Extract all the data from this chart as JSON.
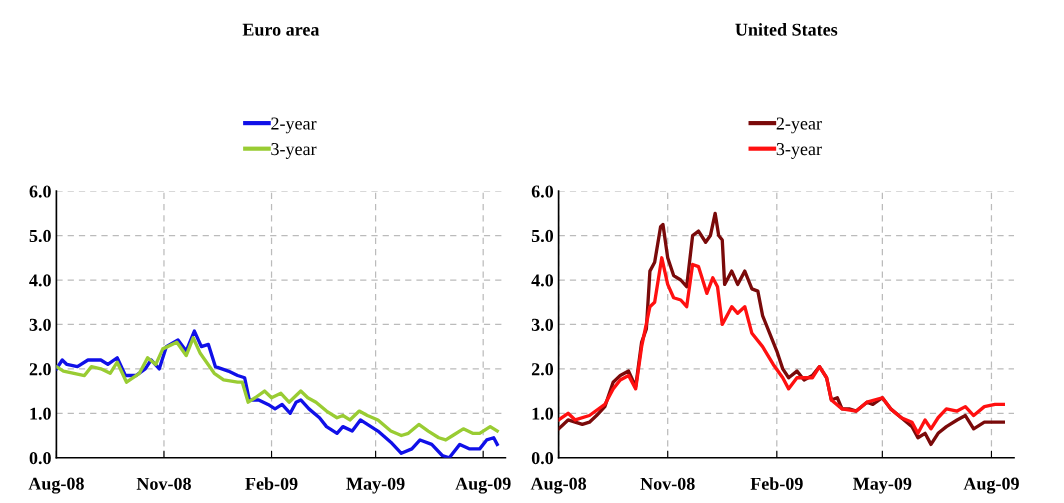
{
  "chart_data": [
    {
      "type": "line",
      "title": "Euro area",
      "xlim": [
        "2008-08-01",
        "2009-08-20"
      ],
      "ylim": [
        0,
        6
      ],
      "xticks": [
        {
          "value": "2008-08-01",
          "label": "Aug-08"
        },
        {
          "value": "2008-11-01",
          "label": "Nov-08"
        },
        {
          "value": "2009-02-01",
          "label": "Feb-09"
        },
        {
          "value": "2009-05-01",
          "label": "May-09"
        },
        {
          "value": "2009-08-01",
          "label": "Aug-09"
        }
      ],
      "yticks": [
        {
          "value": 0,
          "label": "0.0"
        },
        {
          "value": 1,
          "label": "1.0"
        },
        {
          "value": 2,
          "label": "2.0"
        },
        {
          "value": 3,
          "label": "3.0"
        },
        {
          "value": 4,
          "label": "4.0"
        },
        {
          "value": 5,
          "label": "5.0"
        },
        {
          "value": 6,
          "label": "6.0"
        }
      ],
      "grid": true,
      "legend": "top",
      "marker": "none",
      "line_style": "solid",
      "series": [
        {
          "name": "2-year",
          "color": "#1010e8",
          "x": [
            "2008-08-01",
            "2008-08-06",
            "2008-08-10",
            "2008-08-19",
            "2008-08-28",
            "2008-09-08",
            "2008-09-14",
            "2008-09-22",
            "2008-09-29",
            "2008-10-08",
            "2008-10-16",
            "2008-10-21",
            "2008-10-28",
            "2008-11-03",
            "2008-11-13",
            "2008-11-20",
            "2008-11-27",
            "2008-12-03",
            "2008-12-09",
            "2008-12-15",
            "2008-12-26",
            "2009-01-03",
            "2009-01-09",
            "2009-01-13",
            "2009-01-21",
            "2009-01-29",
            "2009-02-04",
            "2009-02-10",
            "2009-02-17",
            "2009-02-22",
            "2009-02-26",
            "2009-03-05",
            "2009-03-14",
            "2009-03-20",
            "2009-03-29",
            "2009-04-03",
            "2009-04-11",
            "2009-04-18",
            "2009-04-24",
            "2009-05-03",
            "2009-05-14",
            "2009-05-23",
            "2009-06-01",
            "2009-06-08",
            "2009-06-18",
            "2009-06-27",
            "2009-07-03",
            "2009-07-12",
            "2009-07-20",
            "2009-07-29",
            "2009-08-04",
            "2009-08-10",
            "2009-08-13"
          ],
          "values": [
            2.0,
            2.2,
            2.1,
            2.05,
            2.2,
            2.2,
            2.1,
            2.25,
            1.85,
            1.85,
            2.0,
            2.2,
            2.0,
            2.5,
            2.65,
            2.4,
            2.85,
            2.5,
            2.55,
            2.05,
            1.95,
            1.85,
            1.8,
            1.3,
            1.3,
            1.2,
            1.1,
            1.2,
            1.0,
            1.25,
            1.3,
            1.1,
            0.9,
            0.7,
            0.55,
            0.7,
            0.6,
            0.85,
            0.75,
            0.6,
            0.35,
            0.1,
            0.2,
            0.4,
            0.3,
            0.05,
            0.0,
            0.3,
            0.2,
            0.2,
            0.4,
            0.45,
            0.3
          ]
        },
        {
          "name": "3-year",
          "color": "#99cc33",
          "x": [
            "2008-08-01",
            "2008-08-07",
            "2008-08-16",
            "2008-08-25",
            "2008-08-31",
            "2008-09-08",
            "2008-09-16",
            "2008-09-22",
            "2008-09-30",
            "2008-10-11",
            "2008-10-18",
            "2008-10-25",
            "2008-10-31",
            "2008-11-12",
            "2008-11-20",
            "2008-11-26",
            "2008-12-02",
            "2008-12-14",
            "2008-12-22",
            "2009-01-03",
            "2009-01-07",
            "2009-01-12",
            "2009-01-18",
            "2009-01-26",
            "2009-02-01",
            "2009-02-09",
            "2009-02-16",
            "2009-02-26",
            "2009-03-04",
            "2009-03-11",
            "2009-03-20",
            "2009-03-29",
            "2009-04-03",
            "2009-04-09",
            "2009-04-17",
            "2009-04-24",
            "2009-05-03",
            "2009-05-14",
            "2009-05-23",
            "2009-05-29",
            "2009-06-07",
            "2009-06-15",
            "2009-06-24",
            "2009-06-30",
            "2009-07-06",
            "2009-07-15",
            "2009-07-23",
            "2009-07-29",
            "2009-08-07",
            "2009-08-13"
          ],
          "values": [
            2.05,
            1.95,
            1.9,
            1.85,
            2.05,
            2.0,
            1.9,
            2.15,
            1.7,
            1.9,
            2.25,
            2.1,
            2.45,
            2.6,
            2.3,
            2.7,
            2.35,
            1.9,
            1.75,
            1.7,
            1.7,
            1.25,
            1.35,
            1.5,
            1.35,
            1.45,
            1.25,
            1.5,
            1.35,
            1.25,
            1.05,
            0.9,
            0.95,
            0.85,
            1.05,
            0.95,
            0.85,
            0.6,
            0.5,
            0.55,
            0.75,
            0.6,
            0.45,
            0.4,
            0.5,
            0.65,
            0.55,
            0.55,
            0.7,
            0.6
          ]
        }
      ]
    },
    {
      "type": "line",
      "title": "United States",
      "xlim": [
        "2008-08-01",
        "2009-08-20"
      ],
      "ylim": [
        0,
        6
      ],
      "xticks": [
        {
          "value": "2008-08-01",
          "label": "Aug-08"
        },
        {
          "value": "2008-11-01",
          "label": "Nov-08"
        },
        {
          "value": "2009-02-01",
          "label": "Feb-09"
        },
        {
          "value": "2009-05-01",
          "label": "May-09"
        },
        {
          "value": "2009-08-01",
          "label": "Aug-09"
        }
      ],
      "yticks": [
        {
          "value": 0,
          "label": "0.0"
        },
        {
          "value": 1,
          "label": "1.0"
        },
        {
          "value": 2,
          "label": "2.0"
        },
        {
          "value": 3,
          "label": "3.0"
        },
        {
          "value": 4,
          "label": "4.0"
        },
        {
          "value": 5,
          "label": "5.0"
        },
        {
          "value": 6,
          "label": "6.0"
        }
      ],
      "grid": true,
      "legend": "top",
      "marker": "none",
      "line_style": "solid",
      "series": [
        {
          "name": "2-year",
          "color": "#7a0a0a",
          "x": [
            "2008-08-01",
            "2008-08-09",
            "2008-08-15",
            "2008-08-21",
            "2008-08-27",
            "2008-09-02",
            "2008-09-09",
            "2008-09-16",
            "2008-09-22",
            "2008-09-29",
            "2008-10-05",
            "2008-10-10",
            "2008-10-14",
            "2008-10-17",
            "2008-10-21",
            "2008-10-26",
            "2008-10-28",
            "2008-11-01",
            "2008-11-06",
            "2008-11-12",
            "2008-11-17",
            "2008-11-22",
            "2008-11-27",
            "2008-12-03",
            "2008-12-07",
            "2008-12-11",
            "2008-12-14",
            "2008-12-17",
            "2008-12-19",
            "2008-12-25",
            "2008-12-30",
            "2009-01-05",
            "2009-01-11",
            "2009-01-16",
            "2009-01-20",
            "2009-01-26",
            "2009-02-01",
            "2009-02-06",
            "2009-02-11",
            "2009-02-18",
            "2009-02-24",
            "2009-03-03",
            "2009-03-09",
            "2009-03-15",
            "2009-03-19",
            "2009-03-24",
            "2009-03-28",
            "2009-04-03",
            "2009-04-09",
            "2009-04-18",
            "2009-04-23",
            "2009-05-01",
            "2009-05-08",
            "2009-05-17",
            "2009-05-26",
            "2009-05-31",
            "2009-06-06",
            "2009-06-11",
            "2009-06-17",
            "2009-06-24",
            "2009-07-03",
            "2009-07-10",
            "2009-07-17",
            "2009-07-26",
            "2009-08-04",
            "2009-08-11"
          ],
          "values": [
            0.65,
            0.85,
            0.8,
            0.75,
            0.8,
            0.95,
            1.15,
            1.7,
            1.85,
            1.95,
            1.6,
            2.6,
            2.9,
            4.2,
            4.4,
            5.2,
            5.25,
            4.5,
            4.1,
            4.0,
            3.85,
            5.0,
            5.1,
            4.85,
            5.0,
            5.5,
            5.0,
            4.9,
            3.9,
            4.2,
            3.9,
            4.2,
            3.8,
            3.75,
            3.2,
            2.8,
            2.4,
            2.0,
            1.8,
            1.95,
            1.75,
            1.85,
            2.05,
            1.8,
            1.3,
            1.35,
            1.1,
            1.1,
            1.05,
            1.25,
            1.2,
            1.35,
            1.1,
            0.9,
            0.7,
            0.45,
            0.55,
            0.3,
            0.55,
            0.7,
            0.85,
            0.95,
            0.65,
            0.8,
            0.8,
            0.8
          ]
        },
        {
          "name": "3-year",
          "color": "#ff1010",
          "x": [
            "2008-08-01",
            "2008-08-09",
            "2008-08-15",
            "2008-08-27",
            "2008-09-09",
            "2008-09-16",
            "2008-09-22",
            "2008-09-29",
            "2008-10-05",
            "2008-10-10",
            "2008-10-17",
            "2008-10-21",
            "2008-10-27",
            "2008-11-01",
            "2008-11-06",
            "2008-11-12",
            "2008-11-17",
            "2008-11-22",
            "2008-11-27",
            "2008-12-04",
            "2008-12-09",
            "2008-12-13",
            "2008-12-17",
            "2008-12-25",
            "2008-12-30",
            "2009-01-05",
            "2009-01-11",
            "2009-01-20",
            "2009-01-29",
            "2009-02-06",
            "2009-02-11",
            "2009-02-18",
            "2009-03-03",
            "2009-03-09",
            "2009-03-15",
            "2009-03-19",
            "2009-03-28",
            "2009-04-09",
            "2009-04-18",
            "2009-05-01",
            "2009-05-08",
            "2009-05-17",
            "2009-05-26",
            "2009-05-31",
            "2009-06-06",
            "2009-06-11",
            "2009-06-17",
            "2009-06-24",
            "2009-07-03",
            "2009-07-10",
            "2009-07-17",
            "2009-07-26",
            "2009-08-04",
            "2009-08-11"
          ],
          "values": [
            0.85,
            1.0,
            0.85,
            0.95,
            1.2,
            1.55,
            1.75,
            1.85,
            1.55,
            2.5,
            3.4,
            3.5,
            4.5,
            3.9,
            3.6,
            3.55,
            3.4,
            4.35,
            4.3,
            3.7,
            4.05,
            3.85,
            3.0,
            3.4,
            3.25,
            3.4,
            2.8,
            2.5,
            2.1,
            1.8,
            1.55,
            1.8,
            1.8,
            2.05,
            1.8,
            1.3,
            1.1,
            1.05,
            1.25,
            1.35,
            1.1,
            0.9,
            0.8,
            0.55,
            0.85,
            0.65,
            0.9,
            1.1,
            1.05,
            1.15,
            0.95,
            1.15,
            1.2,
            1.2
          ]
        }
      ]
    }
  ]
}
